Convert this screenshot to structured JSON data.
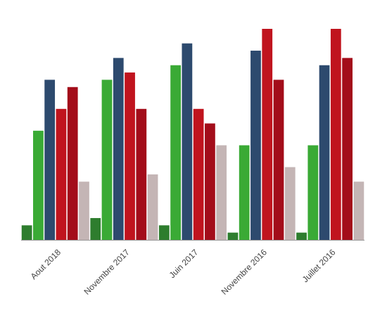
{
  "chart_data": {
    "type": "bar",
    "title": "",
    "xlabel": "",
    "ylabel": "",
    "grid": false,
    "legend": "none",
    "ylim": [
      0,
      29
    ],
    "categories": [
      "Aout 2018",
      "Novembre 2017",
      "Juin 2017",
      "Novembre 2016",
      "Juillet 2016"
    ],
    "series": [
      {
        "color": "#2e7d2e",
        "values": [
          2,
          3,
          2,
          1,
          1
        ]
      },
      {
        "color": "#3aaa35",
        "values": [
          15,
          22,
          24,
          13,
          13
        ]
      },
      {
        "color": "#2d4a6e",
        "values": [
          22,
          25,
          27,
          26,
          24
        ]
      },
      {
        "color": "#c0141e",
        "values": [
          18,
          23,
          18,
          29,
          29
        ]
      },
      {
        "color": "#a30d1a",
        "values": [
          21,
          18,
          16,
          22,
          25
        ]
      },
      {
        "color": "#c4b5b5",
        "values": [
          8,
          9,
          13,
          10,
          8
        ]
      }
    ]
  }
}
